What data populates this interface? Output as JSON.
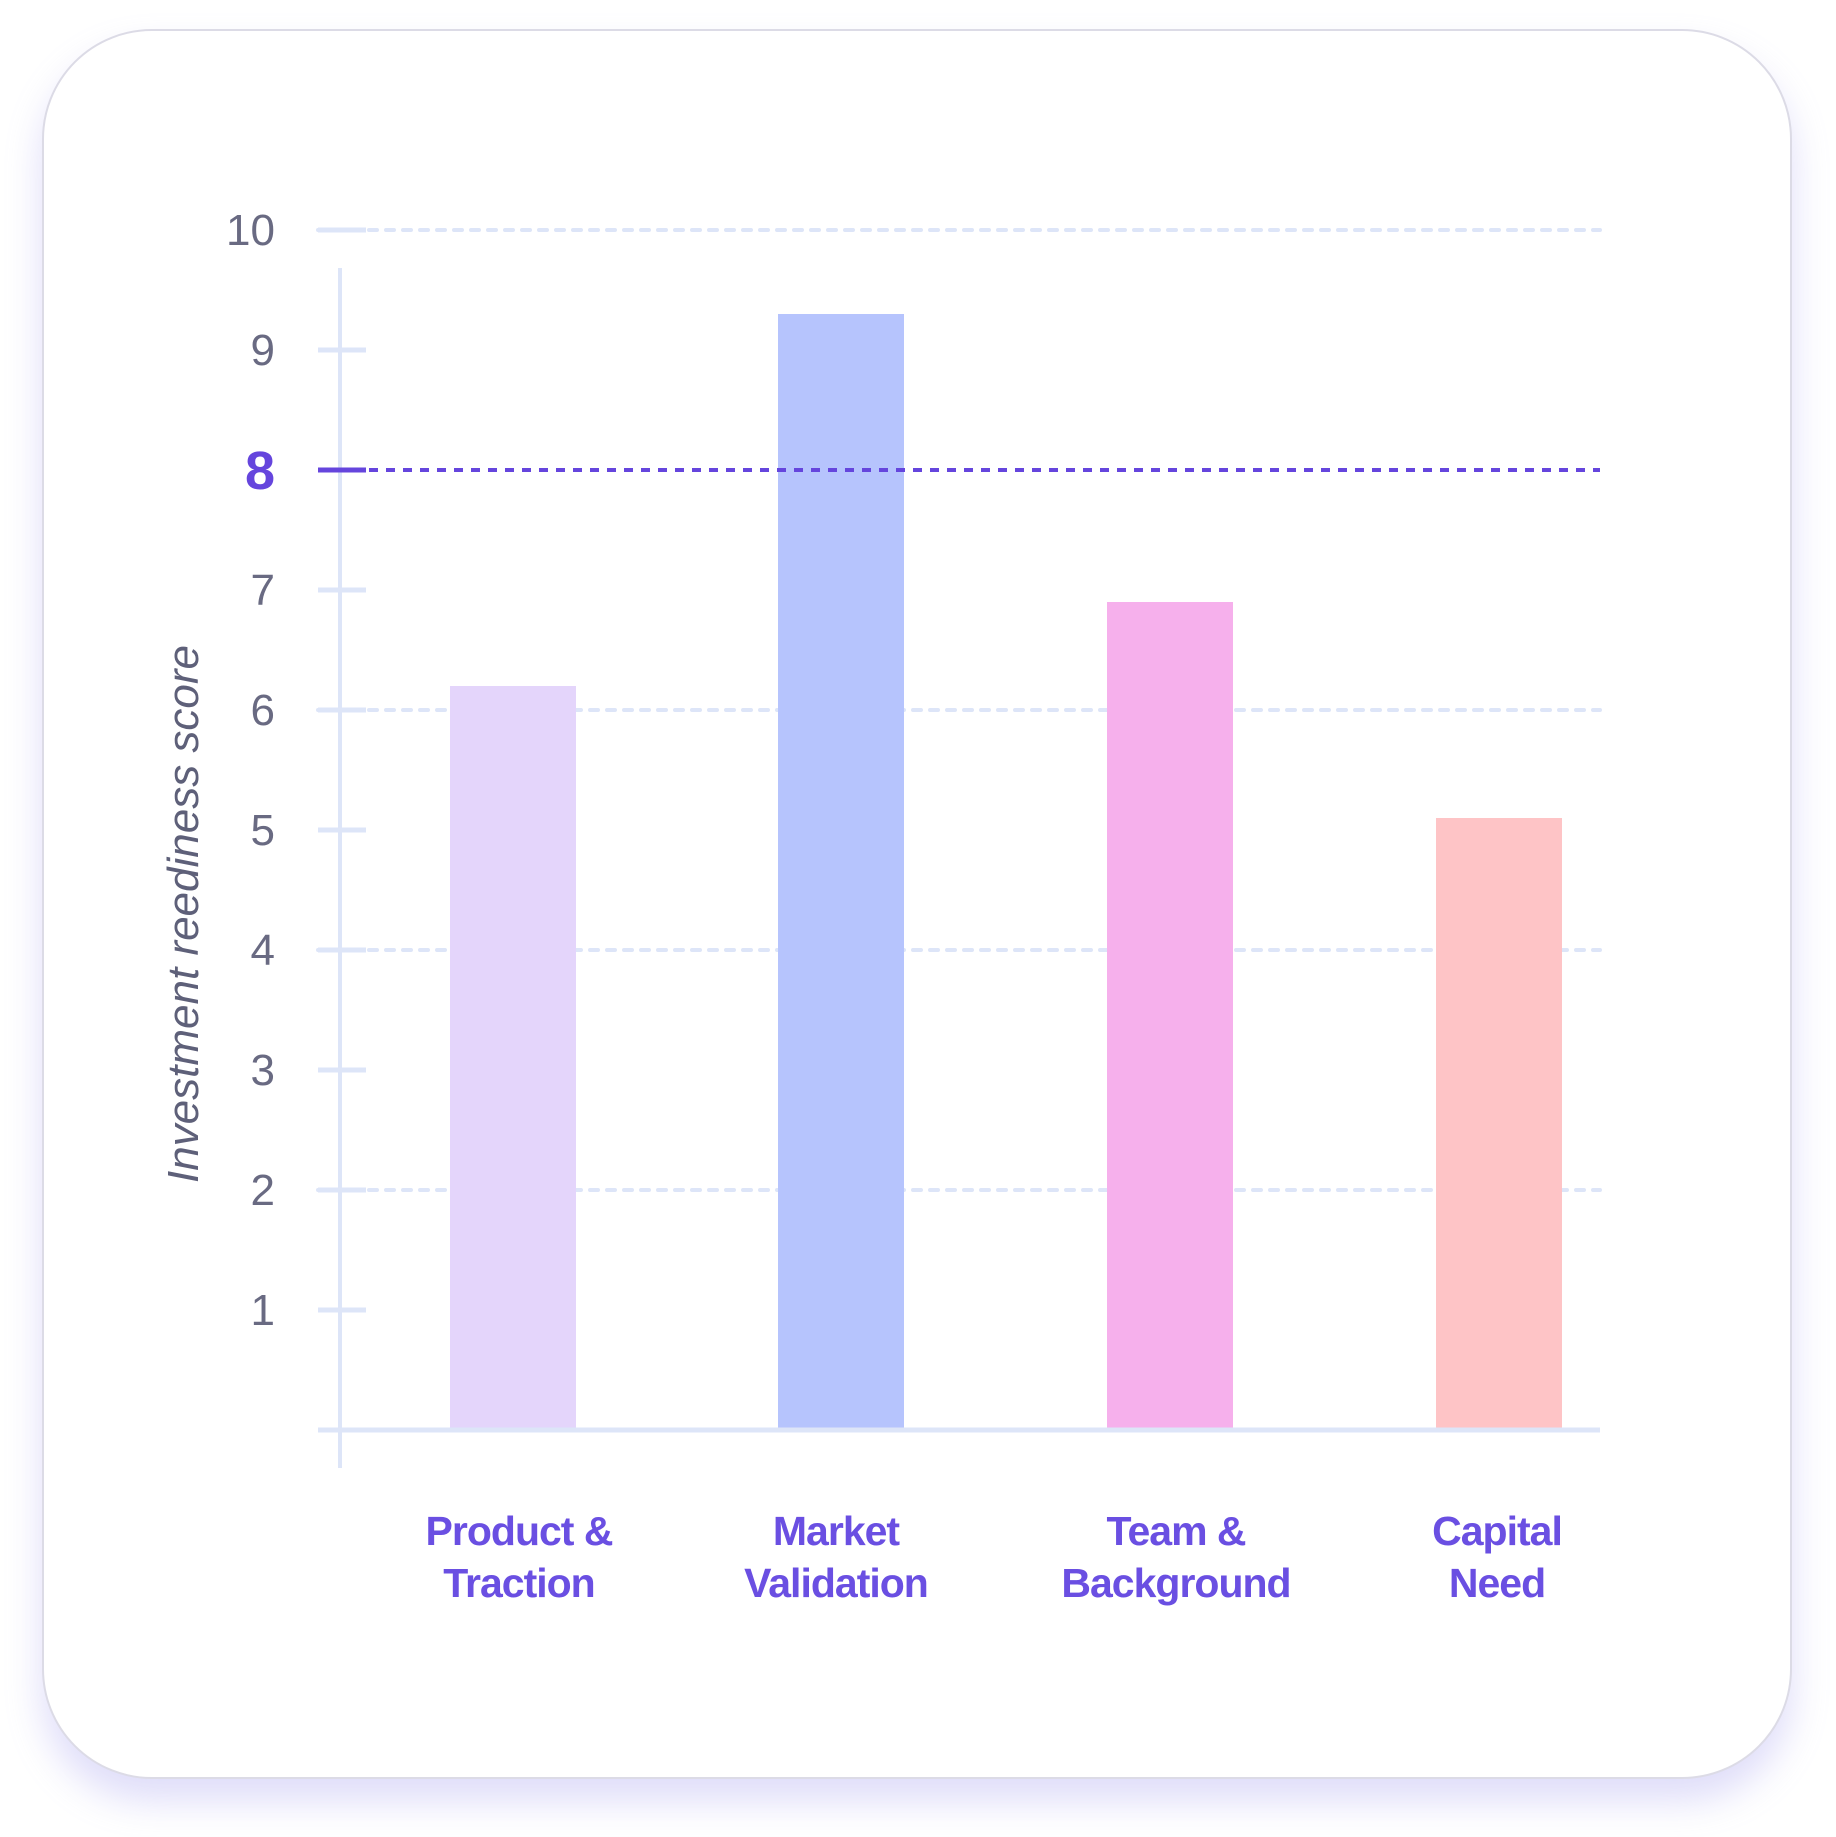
{
  "chart_data": {
    "type": "bar",
    "title": "",
    "xlabel": "",
    "ylabel": "Investment reediness score",
    "ylim": [
      0,
      10
    ],
    "yticks": [
      1,
      2,
      3,
      4,
      5,
      6,
      7,
      8,
      9,
      10
    ],
    "categories": [
      [
        "Product &",
        "Traction"
      ],
      [
        "Market",
        "Validation"
      ],
      [
        "Team &",
        "Background"
      ],
      [
        "Capital",
        "Need"
      ]
    ],
    "values": [
      6.2,
      9.3,
      6.9,
      5.1
    ],
    "bar_colors": [
      "#e4d5fb",
      "#b6c4fd",
      "#f6b0ec",
      "#fec4c6"
    ],
    "threshold": {
      "value": 8,
      "label": "8",
      "color": "#6545dd"
    },
    "grid": true,
    "grid_color": "#dde5f8",
    "legend": "none"
  }
}
